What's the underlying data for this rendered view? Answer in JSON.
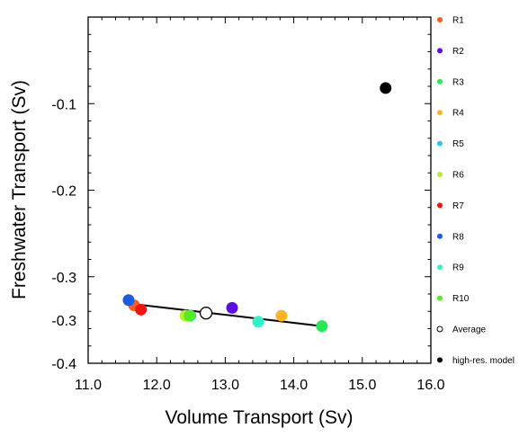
{
  "chart_data": {
    "type": "scatter",
    "title": "",
    "xlabel": "Volume Transport (Sv)",
    "ylabel": "Freshwater Transport (Sv)",
    "xlim": [
      11.0,
      16.0
    ],
    "ylim": [
      -0.4,
      0.0
    ],
    "x_ticks": [
      11.0,
      12.0,
      13.0,
      14.0,
      15.0,
      16.0
    ],
    "x_tick_labels": [
      "11.0",
      "12.0",
      "13.0",
      "14.0",
      "15.0",
      "16.0"
    ],
    "y_ticks": [
      -0.1,
      -0.2,
      -0.3,
      -0.4
    ],
    "y_tick_labels": [
      "-0.1",
      "-0.2",
      "-0.3",
      "-0.3",
      "-0.4"
    ],
    "y_tick_label_values": [
      -0.1,
      -0.2,
      -0.3,
      -0.35,
      -0.4
    ],
    "grid": false,
    "legend_position": "right",
    "series": [
      {
        "name": "R1",
        "color": "#ff5a1f",
        "filled": true,
        "points": [
          [
            11.67,
            -0.333
          ]
        ]
      },
      {
        "name": "R2",
        "color": "#5b0fe6",
        "filled": true,
        "points": [
          [
            13.1,
            -0.336
          ]
        ]
      },
      {
        "name": "R3",
        "color": "#28e85a",
        "filled": true,
        "points": [
          [
            14.41,
            -0.357
          ]
        ]
      },
      {
        "name": "R4",
        "color": "#ffb320",
        "filled": true,
        "points": [
          [
            13.82,
            -0.345
          ]
        ]
      },
      {
        "name": "R5",
        "color": "#26c6f2",
        "filled": true,
        "points": [
          [
            12.49,
            -0.345
          ]
        ]
      },
      {
        "name": "R6",
        "color": "#b7ee2b",
        "filled": true,
        "points": [
          [
            12.42,
            -0.345
          ]
        ]
      },
      {
        "name": "R7",
        "color": "#f01414",
        "filled": true,
        "points": [
          [
            11.77,
            -0.338
          ]
        ]
      },
      {
        "name": "R8",
        "color": "#1c5be6",
        "filled": true,
        "points": [
          [
            11.59,
            -0.327
          ]
        ]
      },
      {
        "name": "R9",
        "color": "#30f2c8",
        "filled": true,
        "points": [
          [
            13.48,
            -0.352
          ]
        ]
      },
      {
        "name": "R10",
        "color": "#50ec24",
        "filled": true,
        "points": [
          [
            12.48,
            -0.345
          ]
        ]
      },
      {
        "name": "Average",
        "color": "#000000",
        "filled": false,
        "points": [
          [
            12.72,
            -0.342
          ]
        ]
      },
      {
        "name": "high-res. model",
        "color": "#000000",
        "filled": true,
        "points": [
          [
            15.34,
            -0.082
          ]
        ]
      }
    ],
    "fit_line": {
      "x": [
        11.6,
        14.4
      ],
      "y": [
        -0.331,
        -0.357
      ]
    }
  }
}
